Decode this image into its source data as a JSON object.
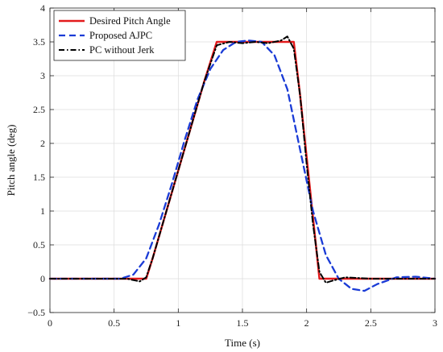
{
  "chart_data": {
    "type": "line",
    "title": "",
    "xlabel": "Time (s)",
    "ylabel": "Pitch angle (deg)",
    "xlim": [
      0,
      3
    ],
    "ylim": [
      -0.5,
      4
    ],
    "xticks": [
      0,
      0.5,
      1,
      1.5,
      2,
      2.5,
      3
    ],
    "xtick_labels": [
      "0",
      "0.5",
      "1",
      "1.5",
      "2",
      "2.5",
      "3"
    ],
    "yticks": [
      -0.5,
      0,
      0.5,
      1,
      1.5,
      2,
      2.5,
      3,
      3.5,
      4
    ],
    "ytick_labels": [
      "−0.5",
      "0",
      "0.5",
      "1",
      "1.5",
      "2",
      "2.5",
      "3",
      "3.5",
      "4"
    ],
    "grid": true,
    "legend_position": "top-left",
    "series": [
      {
        "name": "Desired Pitch Angle",
        "color": "#e31a1c",
        "style": "solid",
        "x": [
          0,
          0.75,
          0.8,
          0.9,
          1.0,
          1.1,
          1.2,
          1.3,
          1.4,
          1.5,
          1.6,
          1.7,
          1.8,
          1.9,
          1.95,
          2.0,
          2.05,
          2.1,
          2.3,
          2.5,
          2.7,
          3.0
        ],
        "y": [
          0,
          0,
          0.3,
          0.95,
          1.6,
          2.25,
          2.9,
          3.5,
          3.5,
          3.5,
          3.5,
          3.5,
          3.5,
          3.5,
          2.7,
          1.8,
          0.9,
          0,
          0,
          0,
          0,
          0
        ]
      },
      {
        "name": "Proposed AJPC",
        "color": "#1a3bd6",
        "style": "dashed",
        "x": [
          0,
          0.55,
          0.65,
          0.75,
          0.85,
          0.95,
          1.05,
          1.15,
          1.25,
          1.35,
          1.45,
          1.55,
          1.65,
          1.75,
          1.85,
          1.95,
          2.05,
          2.15,
          2.25,
          2.35,
          2.45,
          2.55,
          2.7,
          2.85,
          3.0
        ],
        "y": [
          0,
          0,
          0.06,
          0.3,
          0.8,
          1.4,
          2.05,
          2.65,
          3.1,
          3.38,
          3.5,
          3.52,
          3.5,
          3.3,
          2.8,
          1.9,
          1.0,
          0.35,
          0.0,
          -0.15,
          -0.18,
          -0.08,
          0.02,
          0.03,
          0.0
        ]
      },
      {
        "name": "PC without Jerk",
        "color": "#000000",
        "style": "dashdot",
        "x": [
          0,
          0.6,
          0.7,
          0.75,
          0.8,
          0.9,
          1.0,
          1.1,
          1.2,
          1.3,
          1.4,
          1.5,
          1.6,
          1.7,
          1.8,
          1.85,
          1.9,
          1.95,
          2.0,
          2.05,
          2.1,
          2.15,
          2.2,
          2.3,
          2.5,
          3.0
        ],
        "y": [
          0,
          0,
          -0.04,
          0.02,
          0.3,
          0.95,
          1.6,
          2.25,
          2.9,
          3.45,
          3.5,
          3.48,
          3.5,
          3.48,
          3.52,
          3.58,
          3.4,
          2.7,
          1.7,
          0.8,
          0.1,
          -0.06,
          -0.03,
          0.02,
          0.0,
          0.0
        ]
      }
    ]
  }
}
